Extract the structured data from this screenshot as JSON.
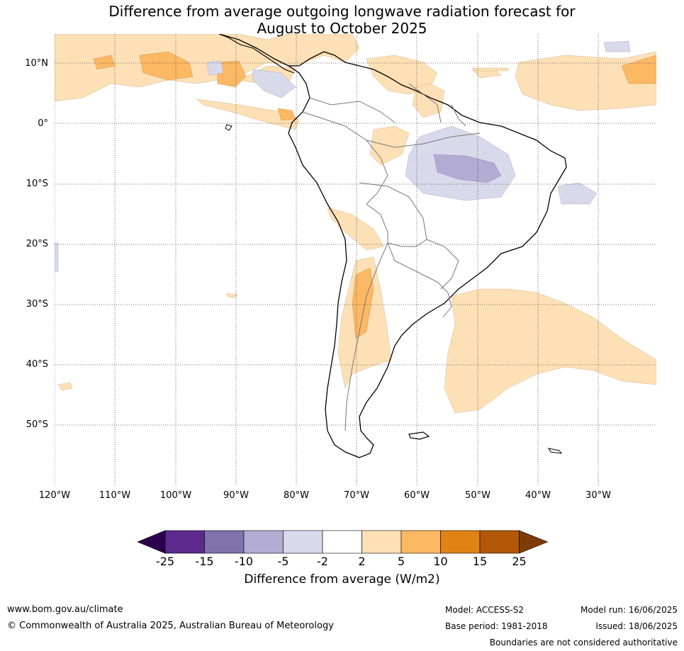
{
  "title": {
    "line1": "Difference from average outgoing longwave radiation forecast for",
    "line2": "August to October 2025"
  },
  "map": {
    "region": "South America",
    "lat_labels": [
      "10°N",
      "0°",
      "10°S",
      "20°S",
      "30°S",
      "40°S",
      "50°S"
    ],
    "lon_labels": [
      "120°W",
      "110°W",
      "100°W",
      "90°W",
      "80°W",
      "70°W",
      "60°W",
      "50°W",
      "40°W",
      "30°W"
    ],
    "gridlines": true
  },
  "colorbar": {
    "ticks": [
      "-25",
      "-15",
      "-10",
      "-5",
      "-2",
      "2",
      "5",
      "10",
      "15",
      "25"
    ],
    "colors": [
      "#2d004b",
      "#5b2a8c",
      "#8073ac",
      "#b2abd2",
      "#d8daeb",
      "#ffffff",
      "#fee0b6",
      "#fdb863",
      "#e08214",
      "#b35806",
      "#7f3b08"
    ],
    "label": "Difference from average (W/m2)"
  },
  "footer": {
    "website": "www.bom.gov.au/climate",
    "copyright": "© Commonwealth of Australia 2025, Australian Bureau of Meteorology",
    "model": "Model: ACCESS-S2",
    "base_period": "Base period: 1981-2018",
    "model_run": "Model run: 16/06/2025",
    "issued": "Issued: 18/06/2025",
    "boundaries_note": "Boundaries are not considered authoritative"
  }
}
